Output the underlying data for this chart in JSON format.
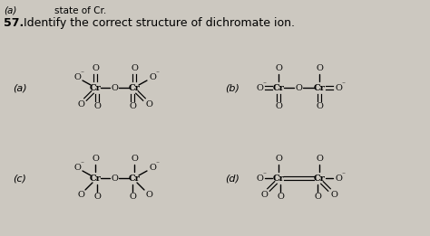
{
  "bg_color": "#ccc8c0",
  "figsize": [
    4.74,
    2.61
  ],
  "dpi": 100,
  "top_text": "state of Cr.",
  "q_num": "57.",
  "q_text": "Identify the correct structure of dichromate ion."
}
